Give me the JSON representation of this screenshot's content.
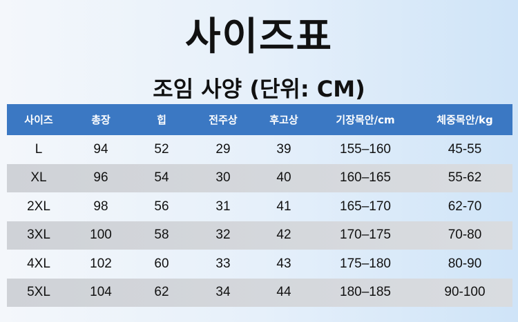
{
  "title": "사이즈표",
  "subtitle": "조임 사양 (단위: CM)",
  "table": {
    "headers": [
      "사이즈",
      "총장",
      "힙",
      "전주상",
      "후고상",
      "기장목안/cm",
      "체중목안/kg"
    ],
    "rows": [
      [
        "L",
        "94",
        "52",
        "29",
        "39",
        "155–160",
        "45-55"
      ],
      [
        "XL",
        "96",
        "54",
        "30",
        "40",
        "160–165",
        "55-62"
      ],
      [
        "2XL",
        "98",
        "56",
        "31",
        "41",
        "165–170",
        "62-70"
      ],
      [
        "3XL",
        "100",
        "58",
        "32",
        "42",
        "170–175",
        "70-80"
      ],
      [
        "4XL",
        "102",
        "60",
        "33",
        "43",
        "175–180",
        "80-90"
      ],
      [
        "5XL",
        "104",
        "62",
        "34",
        "44",
        "180–185",
        "90-100"
      ]
    ]
  },
  "colors": {
    "header": "#3b78c3",
    "alt_row": "#d3d6da"
  }
}
